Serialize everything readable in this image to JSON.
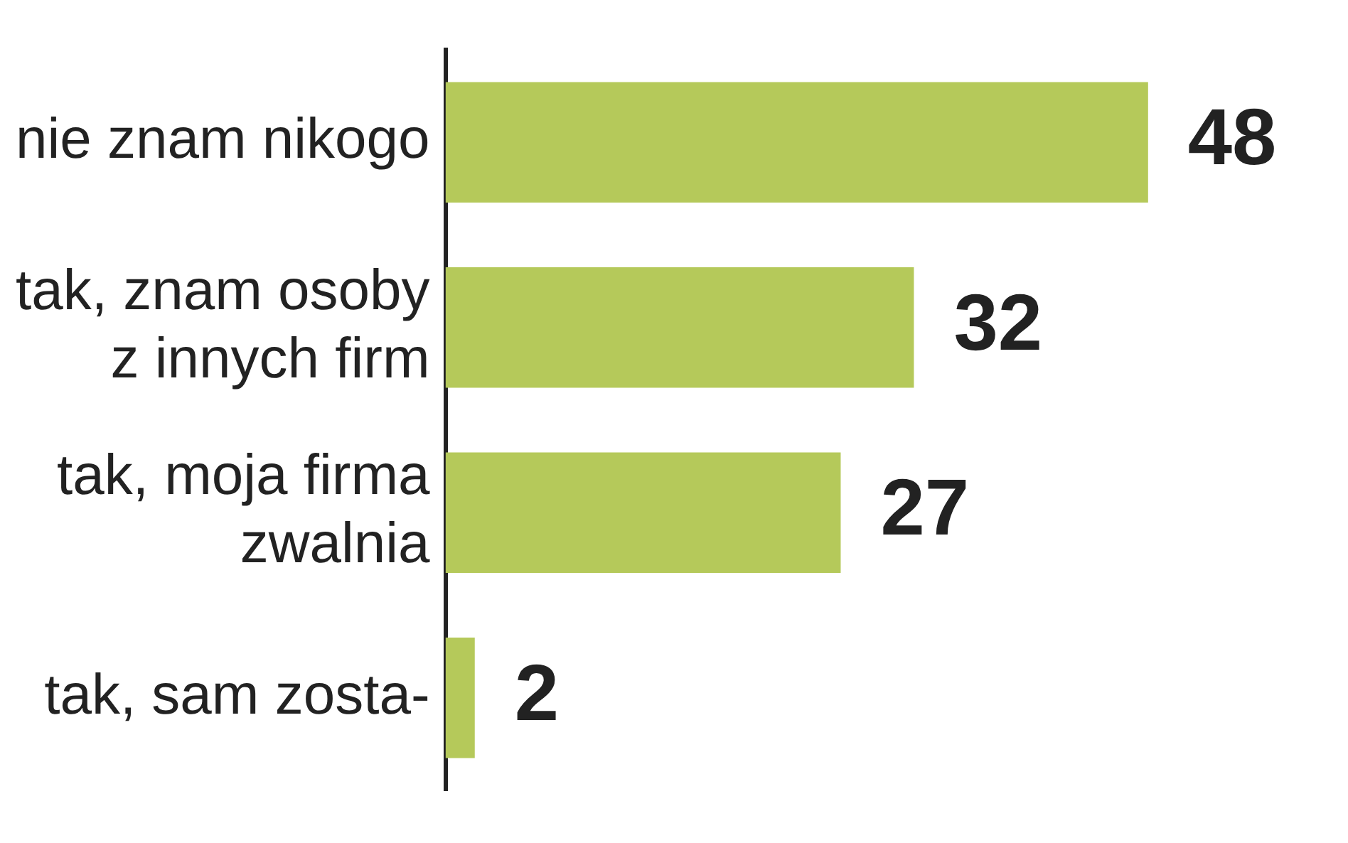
{
  "chart_data": {
    "type": "bar",
    "orientation": "horizontal",
    "categories": [
      "nie znam nikogo",
      "tak, znam osoby z innych firm",
      "tak, moja firma zwalnia",
      "tak, sam zosta-"
    ],
    "values": [
      48,
      32,
      27,
      2
    ],
    "color": "#b5c95a",
    "data_labels": true,
    "legend": false
  }
}
